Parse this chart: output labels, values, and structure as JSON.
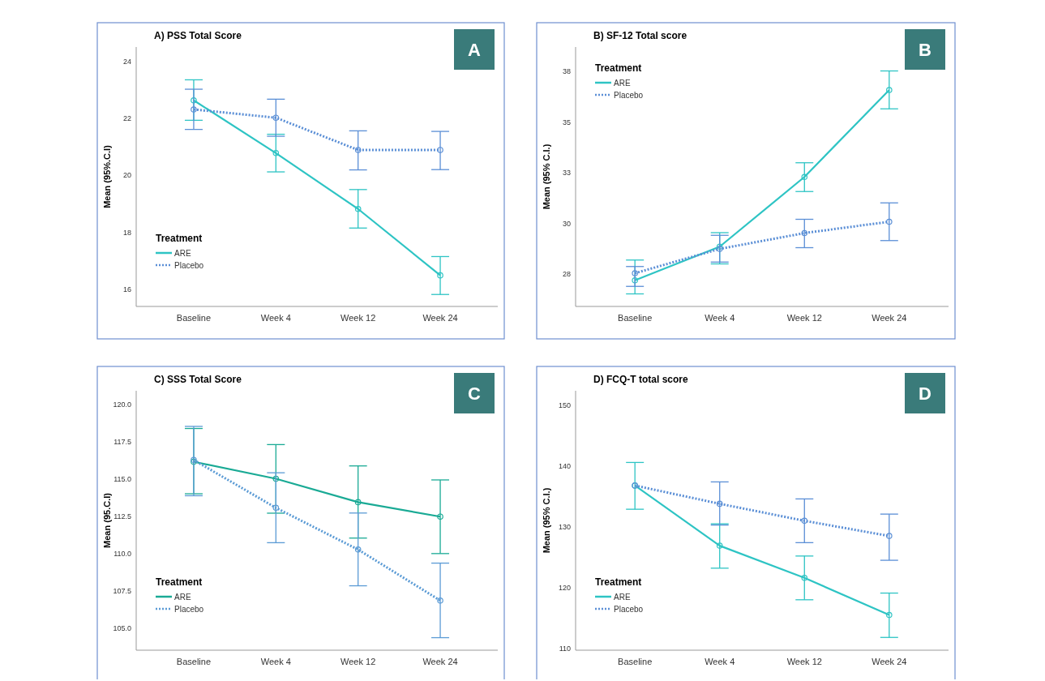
{
  "chart_data": [
    {
      "type": "line",
      "title": "A) PSS Total Score",
      "ylabel": "Mean (95%.C.I)",
      "legend_title": "Treatment",
      "legend": "bottom left",
      "marker": "circle",
      "annotations": [
        "A"
      ],
      "categories": [
        "Baseline",
        "Week 4",
        "Week 12",
        "Week 24"
      ],
      "ylim": [
        15.4,
        24.5
      ],
      "yticks": [
        16,
        18,
        20,
        22,
        24
      ],
      "series": [
        {
          "name": "ARE",
          "color": "#2ec4c4",
          "line_style": "solid",
          "values": [
            22.63,
            20.78,
            18.82,
            16.49
          ],
          "errors": [
            [
              21.93,
              23.35
            ],
            [
              20.12,
              21.44
            ],
            [
              18.15,
              19.5
            ],
            [
              15.82,
              17.15
            ]
          ]
        },
        {
          "name": "Placebo",
          "color": "#5b8fd6",
          "line_style": "dotted",
          "values": [
            22.31,
            22.02,
            20.89,
            20.89
          ],
          "errors": [
            [
              21.61,
              23.02
            ],
            [
              21.37,
              22.67
            ],
            [
              20.19,
              21.56
            ],
            [
              20.2,
              21.54
            ]
          ]
        }
      ]
    },
    {
      "type": "line",
      "title": "B) SF-12 Total score",
      "ylabel": "Mean (95% C.I.)",
      "legend_title": "Treatment",
      "legend": "top left",
      "marker": "circle",
      "annotations": [
        "B"
      ],
      "categories": [
        "Baseline",
        "Week 4",
        "Week 12",
        "Week 24"
      ],
      "ylim": [
        25.9,
        38.7
      ],
      "yticks": [
        {
          "value": 27.5,
          "label": "28"
        },
        30,
        {
          "value": 32.5,
          "label": "33"
        },
        35,
        {
          "value": 37.5,
          "label": "38"
        }
      ],
      "series": [
        {
          "name": "ARE",
          "color": "#2ec4c4",
          "line_style": "solid",
          "values": [
            27.19,
            28.85,
            32.29,
            36.58
          ],
          "errors": [
            [
              26.52,
              28.19
            ],
            [
              28.0,
              29.54
            ],
            [
              31.57,
              32.99
            ],
            [
              35.65,
              37.52
            ]
          ]
        },
        {
          "name": "Placebo",
          "color": "#5b8fd6",
          "line_style": "dotted",
          "values": [
            27.54,
            28.74,
            29.52,
            30.08
          ],
          "errors": [
            [
              26.89,
              27.87
            ],
            [
              28.09,
              29.41
            ],
            [
              28.8,
              30.2
            ],
            [
              29.15,
              31.01
            ]
          ]
        }
      ]
    },
    {
      "type": "line",
      "title": "C) SSS Total Score",
      "ylabel": "Mean (95.C.I)",
      "legend_title": "Treatment",
      "legend": "bottom left",
      "marker": "circle",
      "annotations": [
        "C"
      ],
      "categories": [
        "Baseline",
        "Week 4",
        "Week 12",
        "Week 24"
      ],
      "ylim": [
        103.5,
        120.9
      ],
      "yticks": [
        {
          "value": 105,
          "label": "105.0"
        },
        107.5,
        {
          "value": 110,
          "label": "110.0"
        },
        112.5,
        {
          "value": 115,
          "label": "115.0"
        },
        117.5,
        {
          "value": 120,
          "label": "120.0"
        }
      ],
      "series": [
        {
          "name": "ARE",
          "color": "#1aaa95",
          "line_style": "solid",
          "values": [
            116.14,
            115.0,
            113.43,
            112.46
          ],
          "errors": [
            [
              113.99,
              118.37
            ],
            [
              112.69,
              117.29
            ],
            [
              111.02,
              115.86
            ],
            [
              109.98,
              114.92
            ]
          ]
        },
        {
          "name": "Placebo",
          "color": "#5b9bd5",
          "line_style": "dotted",
          "values": [
            116.26,
            113.05,
            110.25,
            106.83
          ],
          "errors": [
            [
              113.86,
              118.51
            ],
            [
              110.71,
              115.4
            ],
            [
              107.82,
              112.7
            ],
            [
              104.34,
              109.34
            ]
          ]
        }
      ]
    },
    {
      "type": "line",
      "title": "D) FCQ-T total score",
      "ylabel": "Mean (95% C.I.)",
      "legend_title": "Treatment",
      "legend": "bottom left",
      "marker": "circle",
      "annotations": [
        "D"
      ],
      "categories": [
        "Baseline",
        "Week 4",
        "Week 12",
        "Week 24"
      ],
      "ylim": [
        109.7,
        152.4
      ],
      "yticks": [
        110,
        120,
        130,
        140,
        150
      ],
      "series": [
        {
          "name": "ARE",
          "color": "#2ec4c4",
          "line_style": "solid",
          "values": [
            136.8,
            126.9,
            121.6,
            115.5
          ],
          "errors": [
            [
              132.9,
              140.6
            ],
            [
              123.2,
              130.5
            ],
            [
              118.0,
              125.2
            ],
            [
              111.8,
              119.1
            ]
          ]
        },
        {
          "name": "Placebo",
          "color": "#5b8fd6",
          "line_style": "dotted",
          "values": [
            136.8,
            133.8,
            131.0,
            128.5
          ],
          "errors": [
            null,
            [
              130.3,
              137.4
            ],
            [
              127.4,
              134.6
            ],
            [
              124.5,
              132.1
            ]
          ]
        }
      ]
    }
  ]
}
